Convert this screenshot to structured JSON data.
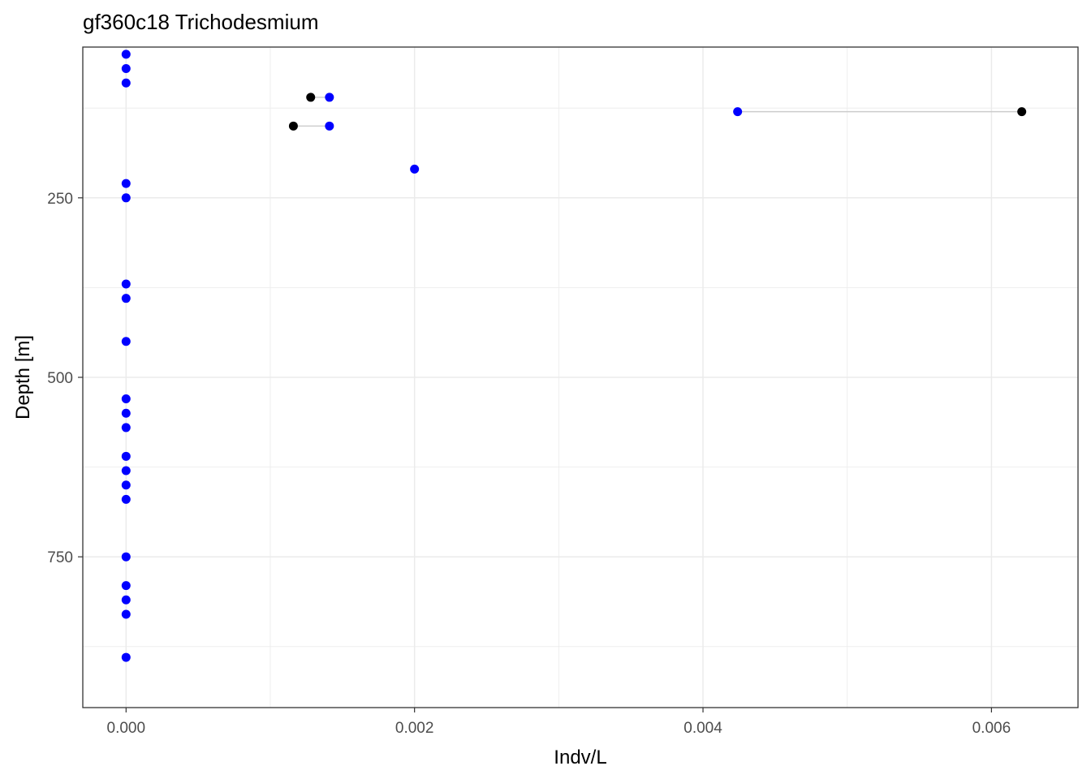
{
  "chart_data": {
    "type": "scatter",
    "title": "gf360c18 Trichodesmium",
    "xlabel": "Indv/L",
    "ylabel": "Depth [m]",
    "xlim": [
      -0.0003,
      0.0066
    ],
    "ylim": [
      40,
      960
    ],
    "y_reversed": true,
    "x_ticks": [
      0.0,
      0.002,
      0.004,
      0.006
    ],
    "x_tick_labels": [
      "0.000",
      "0.002",
      "0.004",
      "0.006"
    ],
    "y_ticks": [
      250,
      500,
      750
    ],
    "y_tick_labels": [
      "250",
      "500",
      "750"
    ],
    "grid": true,
    "colors": {
      "points_blue": "#0000ff",
      "points_black": "#000000",
      "segments": "#cccccc",
      "grid": "#ebebeb",
      "panel_border": "#333333"
    },
    "series": [
      {
        "color": "#0000ff",
        "points": [
          {
            "x": 0.0,
            "y": 50
          },
          {
            "x": 0.0,
            "y": 70
          },
          {
            "x": 0.0,
            "y": 90
          },
          {
            "x": 0.0,
            "y": 230
          },
          {
            "x": 0.0,
            "y": 250
          },
          {
            "x": 0.0,
            "y": 370
          },
          {
            "x": 0.0,
            "y": 390
          },
          {
            "x": 0.0,
            "y": 450
          },
          {
            "x": 0.0,
            "y": 530
          },
          {
            "x": 0.0,
            "y": 550
          },
          {
            "x": 0.0,
            "y": 570
          },
          {
            "x": 0.0,
            "y": 610
          },
          {
            "x": 0.0,
            "y": 630
          },
          {
            "x": 0.0,
            "y": 650
          },
          {
            "x": 0.0,
            "y": 670
          },
          {
            "x": 0.0,
            "y": 750
          },
          {
            "x": 0.0,
            "y": 790
          },
          {
            "x": 0.0,
            "y": 810
          },
          {
            "x": 0.0,
            "y": 830
          },
          {
            "x": 0.0,
            "y": 890
          },
          {
            "x": 0.00141,
            "y": 110
          },
          {
            "x": 0.00141,
            "y": 150
          },
          {
            "x": 0.002,
            "y": 210
          },
          {
            "x": 0.00424,
            "y": 130
          }
        ]
      },
      {
        "color": "#000000",
        "points": [
          {
            "x": 0.00128,
            "y": 110
          },
          {
            "x": 0.00116,
            "y": 150
          },
          {
            "x": 0.00621,
            "y": 130
          }
        ]
      }
    ],
    "segments": [
      {
        "x1": 0.00128,
        "x2": 0.00141,
        "y": 110
      },
      {
        "x1": 0.00116,
        "x2": 0.00141,
        "y": 150
      },
      {
        "x1": 0.00424,
        "x2": 0.00621,
        "y": 130
      }
    ]
  }
}
